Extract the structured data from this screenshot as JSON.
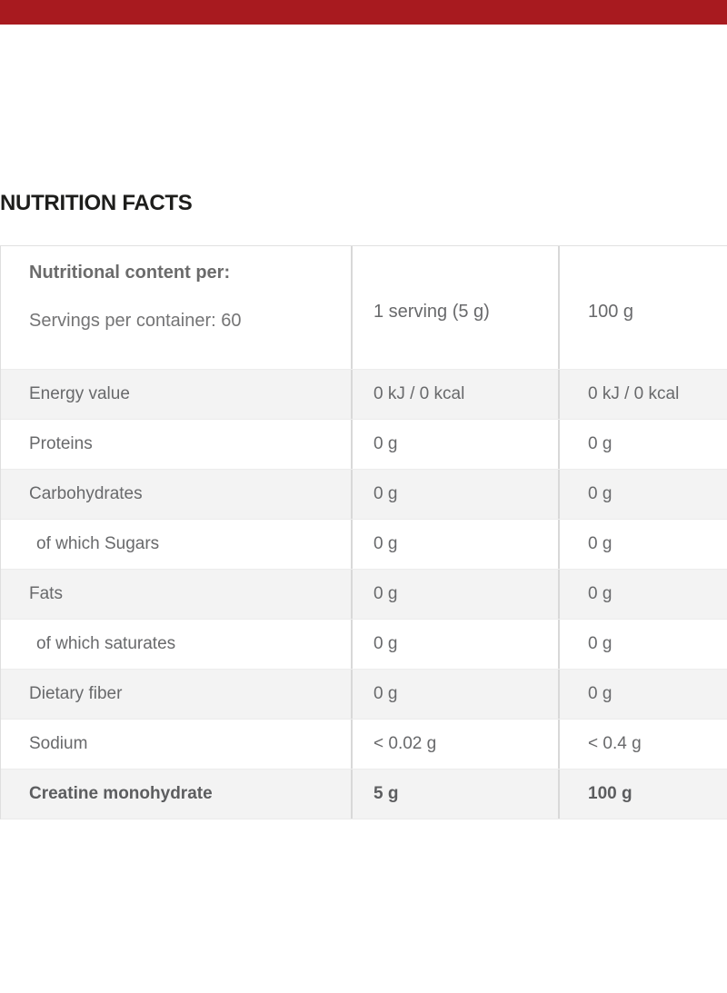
{
  "page": {
    "colors": {
      "top_bar": "#a81a1f",
      "shaded_row_bg": "#f3f3f3",
      "table_text": "#68696b",
      "heading_text": "#1e1e1c",
      "column_border": "#d8d8d8",
      "row_border": "#ececec"
    }
  },
  "section": {
    "title": "NUTRITION FACTS"
  },
  "table": {
    "header": {
      "col1_line1": "Nutritional content per:",
      "col1_line2": "Servings per container: 60",
      "col2": "1 serving (5 g)",
      "col3": "100 g"
    },
    "rows": [
      {
        "label": "Energy value",
        "per_serving": "0 kJ / 0 kcal",
        "per_100g": "0 kJ / 0 kcal",
        "shaded": true,
        "indent": false,
        "bold": false
      },
      {
        "label": "Proteins",
        "per_serving": "0 g",
        "per_100g": "0 g",
        "shaded": false,
        "indent": false,
        "bold": false
      },
      {
        "label": "Carbohydrates",
        "per_serving": "0 g",
        "per_100g": "0 g",
        "shaded": true,
        "indent": false,
        "bold": false
      },
      {
        "label": "of which Sugars",
        "per_serving": "0 g",
        "per_100g": "0 g",
        "shaded": false,
        "indent": true,
        "bold": false
      },
      {
        "label": "Fats",
        "per_serving": "0 g",
        "per_100g": "0 g",
        "shaded": true,
        "indent": false,
        "bold": false
      },
      {
        "label": "of which saturates",
        "per_serving": "0 g",
        "per_100g": "0 g",
        "shaded": false,
        "indent": true,
        "bold": false
      },
      {
        "label": "Dietary fiber",
        "per_serving": "0 g",
        "per_100g": "0 g",
        "shaded": true,
        "indent": false,
        "bold": false
      },
      {
        "label": "Sodium",
        "per_serving": "< 0.02 g",
        "per_100g": "< 0.4 g",
        "shaded": false,
        "indent": false,
        "bold": false
      },
      {
        "label": "Creatine monohydrate",
        "per_serving": "5 g",
        "per_100g": "100 g",
        "shaded": true,
        "indent": false,
        "bold": true
      }
    ]
  }
}
